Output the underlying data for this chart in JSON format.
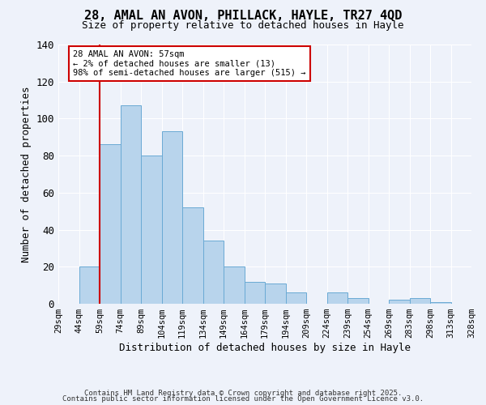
{
  "title": "28, AMAL AN AVON, PHILLACK, HAYLE, TR27 4QD",
  "subtitle": "Size of property relative to detached houses in Hayle",
  "xlabel": "Distribution of detached houses by size in Hayle",
  "ylabel": "Number of detached properties",
  "bar_values": [
    0,
    20,
    86,
    107,
    80,
    93,
    52,
    34,
    20,
    12,
    11,
    6,
    0,
    6,
    3,
    0,
    2,
    3,
    1,
    0
  ],
  "categories": [
    "29sqm",
    "44sqm",
    "59sqm",
    "74sqm",
    "89sqm",
    "104sqm",
    "119sqm",
    "134sqm",
    "149sqm",
    "164sqm",
    "179sqm",
    "194sqm",
    "209sqm",
    "224sqm",
    "239sqm",
    "254sqm",
    "269sqm",
    "283sqm",
    "298sqm",
    "313sqm",
    "328sqm"
  ],
  "bar_color": "#b8d4ec",
  "bar_edge_color": "#6aaad4",
  "ylim": [
    0,
    140
  ],
  "yticks": [
    0,
    20,
    40,
    60,
    80,
    100,
    120,
    140
  ],
  "annotation_text": "28 AMAL AN AVON: 57sqm\n← 2% of detached houses are smaller (13)\n98% of semi-detached houses are larger (515) →",
  "annotation_box_color": "#ffffff",
  "annotation_box_edge": "#cc0000",
  "red_line_color": "#cc0000",
  "footer1": "Contains HM Land Registry data © Crown copyright and database right 2025.",
  "footer2": "Contains public sector information licensed under the Open Government Licence v3.0.",
  "background_color": "#eef2fa"
}
